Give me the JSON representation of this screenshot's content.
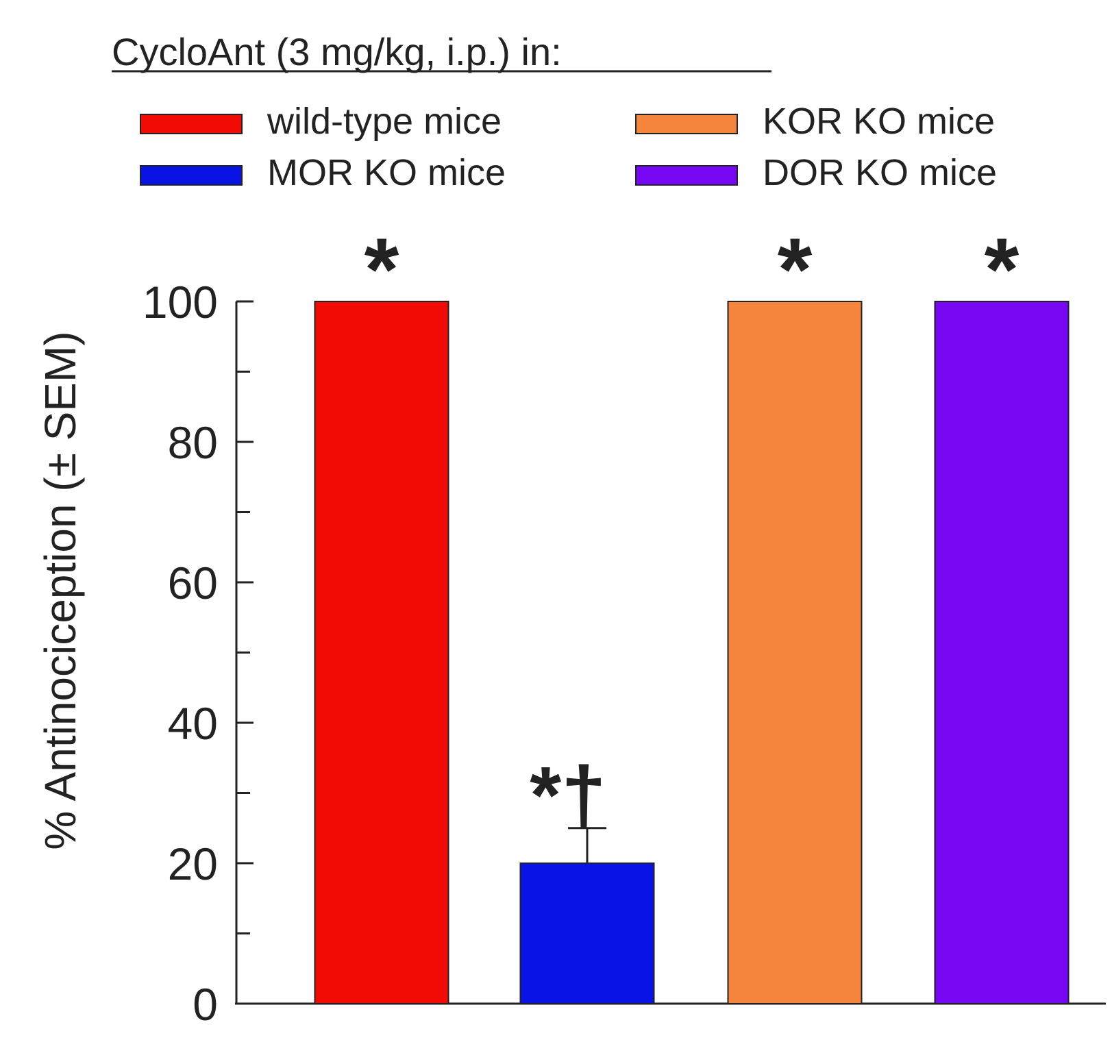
{
  "chart_data": {
    "type": "bar",
    "title": "CycloAnt (3 mg/kg, i.p.) in:",
    "ylabel": "% Antinociception (± SEM)",
    "xlabel": "",
    "ylim": [
      0,
      100
    ],
    "y_ticks": [
      0,
      20,
      40,
      60,
      80,
      100
    ],
    "y_minor_ticks": [
      10,
      30,
      50,
      70,
      90
    ],
    "grid": false,
    "legend_position": "top",
    "categories": [
      "wild-type mice",
      "MOR KO mice",
      "KOR KO mice",
      "DOR KO mice"
    ],
    "values": [
      100,
      20,
      100,
      100
    ],
    "errors": [
      null,
      5,
      null,
      null
    ],
    "colors": [
      "#f20a05",
      "#0a13e6",
      "#f5843c",
      "#7707f3"
    ],
    "annotations": [
      "*",
      "*†",
      "*",
      "*"
    ]
  }
}
